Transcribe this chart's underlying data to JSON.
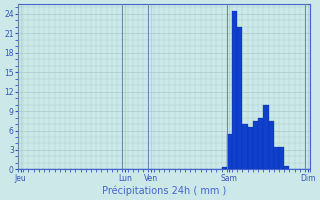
{
  "title": "Précipitations 24h ( mm )",
  "background_color": "#cce8e8",
  "bar_color": "#1040cc",
  "bar_edge_color": "#0030aa",
  "grid_color": "#aacccc",
  "axis_color": "#4466cc",
  "tick_color": "#3355bb",
  "ylabel_values": [
    0,
    3,
    6,
    9,
    12,
    15,
    18,
    21,
    24
  ],
  "ylim": [
    0,
    25.5
  ],
  "n_bars": 56,
  "xtick_labels": [
    "Jeu",
    "Lun",
    "Ven",
    "Sam",
    "Dim"
  ],
  "xtick_positions": [
    0.5,
    20.5,
    25.5,
    40.5,
    55.5
  ],
  "bar_values": [
    0,
    0,
    0,
    0,
    0,
    0,
    0,
    0,
    0,
    0,
    0,
    0,
    0,
    0,
    0,
    0,
    0,
    0,
    0,
    0,
    0,
    0,
    0,
    0,
    0,
    0,
    0,
    0,
    0,
    0,
    0,
    0,
    0,
    0,
    0,
    0,
    0,
    0,
    0,
    0.3,
    5.5,
    24.5,
    22.0,
    7.0,
    6.5,
    7.5,
    8.0,
    10.0,
    7.5,
    3.5,
    3.5,
    0.5,
    0,
    0,
    0,
    0
  ],
  "vline_positions": [
    0,
    20,
    25,
    40,
    55
  ],
  "xlim": [
    0,
    56
  ]
}
